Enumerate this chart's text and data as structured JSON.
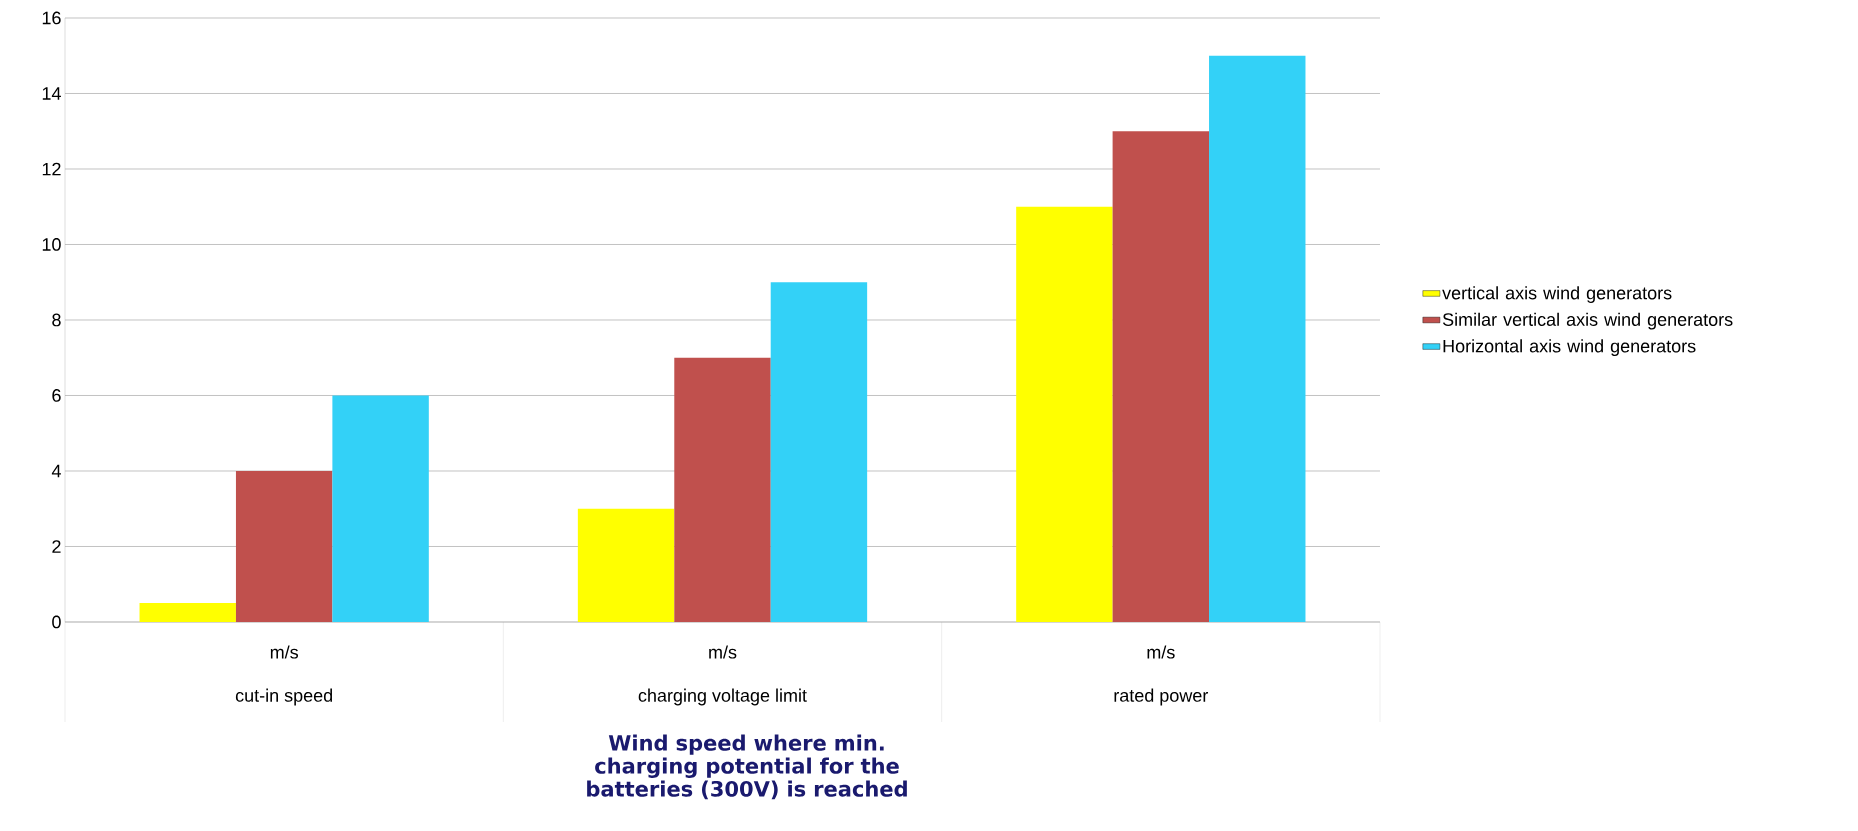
{
  "chart_data": {
    "type": "bar",
    "xlabel": "Wind speed  where min. charging potential for the batteries (300V) is reached",
    "categories": [
      "cut-in speed",
      "charging voltage limit",
      "rated power"
    ],
    "series": [
      {
        "name": "vertical axis wind generators",
        "color": "#ffff00",
        "values": [
          0.5,
          3,
          11
        ]
      },
      {
        "name": "Similar vertical axis wind generators",
        "color": "#c0504d",
        "values": [
          4,
          7,
          13
        ]
      },
      {
        "name": "Horizontal axis wind generators",
        "color": "#33d1f7",
        "values": [
          6,
          9,
          15
        ]
      }
    ],
    "annotations": [
      "m/s",
      "m/s",
      "m/s"
    ],
    "ylim": [
      0,
      16
    ],
    "yticks": [
      0,
      2,
      4,
      6,
      8,
      10,
      12,
      14,
      16
    ],
    "grid": "y",
    "legend": "right"
  }
}
